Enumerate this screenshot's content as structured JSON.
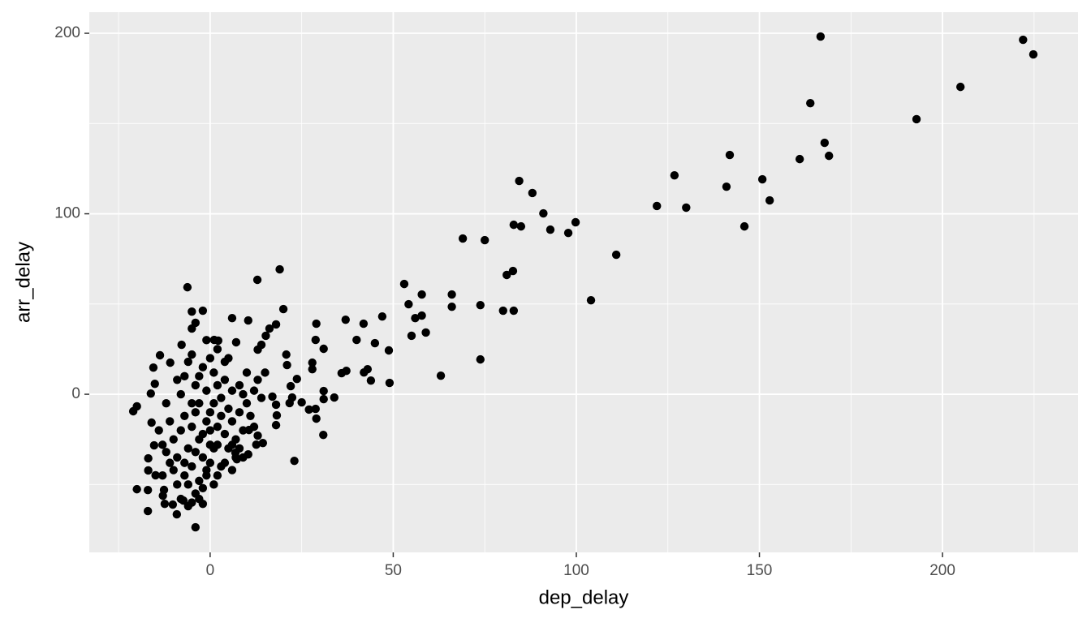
{
  "chart_data": {
    "type": "scatter",
    "x_label": "dep_delay",
    "y_label": "arr_delay",
    "x": [
      166.7,
      222,
      224.8,
      204.9,
      192.9,
      163.9,
      167.8,
      169,
      141.9,
      161,
      150.8,
      126.8,
      84.4,
      88,
      141,
      152.8,
      122,
      130,
      91,
      99.8,
      97.8,
      92.9,
      82.9,
      84.9,
      145.9,
      69,
      75,
      110.9,
      82.7,
      81,
      12.9,
      19,
      -6.2,
      53,
      66,
      57.8,
      54.2,
      66,
      73.8,
      80,
      82.9,
      104,
      57.8,
      56,
      47,
      37,
      41.9,
      29,
      20,
      -2,
      -5,
      -4,
      -5,
      55,
      58.9,
      40,
      45,
      48.8,
      31,
      28.8,
      73.8,
      37.2,
      35.9,
      42,
      43,
      43.9,
      49,
      63,
      33.9,
      31,
      31,
      28.8,
      27,
      29,
      25,
      30.9,
      23,
      20.8,
      21,
      18,
      16.2,
      15.2,
      14,
      13,
      10.4,
      6,
      1.1,
      2.2,
      7.1,
      27.9,
      27.9,
      23.7,
      22,
      22.4,
      21.7,
      18,
      17,
      18.2,
      18,
      13,
      14.4,
      12.6,
      10.6,
      10.4,
      7.3,
      6.9,
      -4,
      -21,
      -20,
      -20,
      -17,
      -17,
      -9.1,
      -10.2,
      -12.4,
      -16,
      -15.3,
      -16.2,
      -15.1,
      -13.7,
      -10.9,
      -7.8,
      -15.5,
      -2,
      -7.3,
      -16.9,
      -16.9,
      -14.9,
      -12.6,
      -12.9,
      -8,
      -6,
      -5,
      -4,
      -3,
      -2,
      -1,
      0,
      1,
      2,
      3,
      -7,
      -6,
      -5,
      -4,
      -3,
      -2,
      -1,
      0,
      1,
      2,
      4,
      5,
      6,
      7,
      8,
      9,
      10,
      -9,
      -10,
      -11,
      -12,
      -8,
      -7,
      -6,
      -5,
      -4,
      -3,
      -2,
      -1,
      0,
      1,
      2,
      3,
      4,
      5,
      6,
      7,
      8,
      9,
      11,
      12,
      13,
      14,
      15,
      -9,
      -10,
      -11,
      -13,
      -14,
      -13,
      -8,
      -6,
      -5,
      -3,
      -7,
      -4,
      -2,
      0,
      3,
      5,
      -1,
      1,
      2,
      4,
      6,
      8,
      10,
      12,
      -12,
      -9,
      -7,
      -5,
      -3,
      0,
      2,
      -1,
      4,
      6,
      9
    ],
    "values": [
      198.2,
      196.4,
      188.3,
      170.3,
      152.4,
      161.3,
      139.3,
      132.1,
      132.6,
      130.3,
      119.1,
      121.3,
      118.2,
      111.5,
      115,
      107.4,
      104.3,
      103.4,
      100.2,
      95.3,
      89.4,
      91.2,
      93.9,
      93,
      93,
      86.3,
      85.4,
      77.3,
      68.3,
      66.1,
      63.4,
      69.2,
      59.3,
      61.1,
      55.3,
      55.3,
      49.9,
      48.5,
      49.4,
      46.3,
      46.3,
      52.1,
      43.6,
      42.2,
      43.1,
      41.3,
      39.1,
      39.1,
      47.2,
      46.3,
      45.8,
      39.6,
      36.4,
      32.4,
      34.2,
      30.1,
      28.3,
      24.3,
      25.2,
      30.1,
      19.3,
      13,
      11.7,
      12.1,
      13.9,
      7.6,
      6.3,
      10.3,
      -1.8,
      1.8,
      -2.7,
      -8.1,
      -8.5,
      -13.5,
      -4.5,
      -22.5,
      -36.9,
      22,
      16.2,
      38.7,
      36.4,
      32.4,
      27.4,
      24.7,
      40.9,
      42.2,
      30.1,
      29.7,
      28.8,
      17.5,
      13.9,
      8.5,
      4.5,
      -1.8,
      -4.9,
      -5.8,
      -1.3,
      -11.7,
      -17.1,
      -22.9,
      -27,
      -27.9,
      -19.8,
      -33.3,
      -36,
      -32.4,
      -73.7,
      -9.4,
      -6.7,
      -52.6,
      -53.1,
      -64.7,
      -66.5,
      -61.1,
      -60.7,
      -15.7,
      -28.3,
      0.4,
      5.8,
      21.6,
      17.5,
      27.4,
      14.8,
      -60.7,
      -58.9,
      -35.5,
      -42.2,
      -44.9,
      -53,
      -56.2,
      -20,
      -30,
      -40,
      -10,
      -25,
      -35,
      -15,
      -20,
      -5,
      -28,
      -12,
      -45,
      -50,
      -5,
      5,
      10,
      15,
      -45,
      -38,
      -30,
      -18,
      -22,
      -8,
      -15,
      -25,
      -10,
      0,
      -5,
      -35,
      -25,
      -15,
      -5,
      0,
      10,
      18,
      22,
      -55,
      -48,
      -52,
      -42,
      -10,
      12,
      5,
      -2,
      8,
      20,
      2,
      -35,
      -30,
      -20,
      -12,
      2,
      8,
      -2,
      12,
      -50,
      -42,
      -38,
      -28,
      -20,
      -45,
      -58,
      -62,
      -60,
      -58,
      -38,
      -32,
      -22,
      -28,
      -40,
      -30,
      2,
      -50,
      -45,
      -38,
      -42,
      5,
      12,
      -18,
      -32,
      8,
      -12,
      -18,
      -5,
      20,
      25,
      30,
      18,
      -28,
      -35
    ],
    "color": "#000000",
    "xlim": [
      -33,
      237
    ],
    "ylim": [
      -87.6,
      211.7
    ],
    "xticks": [
      0,
      50,
      100,
      150,
      200
    ],
    "yticks": [
      0,
      100,
      200
    ],
    "x_minor_grid": [
      -25,
      25,
      75,
      125,
      175,
      225
    ],
    "y_minor_grid": [
      -50,
      50,
      150
    ],
    "grid": true,
    "panel_color": "#ebebeb"
  }
}
